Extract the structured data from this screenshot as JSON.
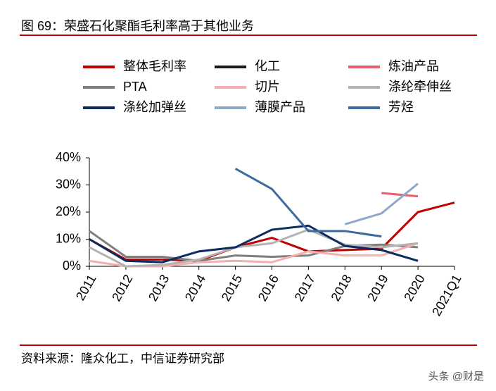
{
  "chart_data": {
    "type": "line",
    "title": "图 69：荣盛石化聚酯毛利率高于其他业务",
    "source": "资料来源：隆众化工，中信证券研究部",
    "watermark": "头条 @财是",
    "categories": [
      "2011",
      "2012",
      "2013",
      "2014",
      "2015",
      "2016",
      "2017",
      "2018",
      "2019",
      "2020",
      "2021Q1"
    ],
    "series": [
      {
        "name": "整体毛利率",
        "color": "#c00000",
        "values": [
          10,
          2.5,
          2.5,
          2,
          7,
          10.5,
          5.5,
          6,
          6.5,
          20,
          23.5
        ]
      },
      {
        "name": "化工",
        "color": "#1a1a1a",
        "values": [
          null,
          null,
          null,
          null,
          null,
          null,
          null,
          null,
          null,
          null,
          null
        ]
      },
      {
        "name": "炼油产品",
        "color": "#e8606e",
        "values": [
          null,
          null,
          null,
          null,
          null,
          null,
          null,
          null,
          27,
          25.8,
          null
        ]
      },
      {
        "name": "PTA",
        "color": "#7f7f7f",
        "values": [
          13,
          3.5,
          3.5,
          2,
          4,
          3.5,
          4,
          7.5,
          8,
          7,
          null
        ]
      },
      {
        "name": "切片",
        "color": "#f4b0b0",
        "values": [
          2,
          0,
          0,
          1.5,
          2,
          1.5,
          5.5,
          4,
          4,
          8.5,
          null
        ]
      },
      {
        "name": "涤纶牵伸丝",
        "color": "#b3b3b3",
        "values": [
          7,
          0,
          0.5,
          2.5,
          7,
          8.5,
          13.5,
          8,
          7,
          8.5,
          null
        ]
      },
      {
        "name": "涤纶加弹丝",
        "color": "#0d2b5e",
        "values": [
          10,
          2,
          1.5,
          5.5,
          7,
          13.5,
          15,
          7.5,
          6,
          2,
          null
        ]
      },
      {
        "name": "薄膜产品",
        "color": "#8ea8c9",
        "values": [
          null,
          null,
          null,
          null,
          null,
          null,
          null,
          15.5,
          19.5,
          30.5,
          null
        ]
      },
      {
        "name": "芳烃",
        "color": "#3d6b9e",
        "values": [
          null,
          null,
          null,
          null,
          36,
          28.5,
          13,
          13,
          11,
          null,
          null
        ]
      }
    ],
    "ylim": [
      0,
      40
    ],
    "yticks": [
      {
        "value": 0,
        "label": "0%"
      },
      {
        "value": 10,
        "label": "10%"
      },
      {
        "value": 20,
        "label": "20%"
      },
      {
        "value": 30,
        "label": "30%"
      },
      {
        "value": 40,
        "label": "40%"
      }
    ]
  }
}
